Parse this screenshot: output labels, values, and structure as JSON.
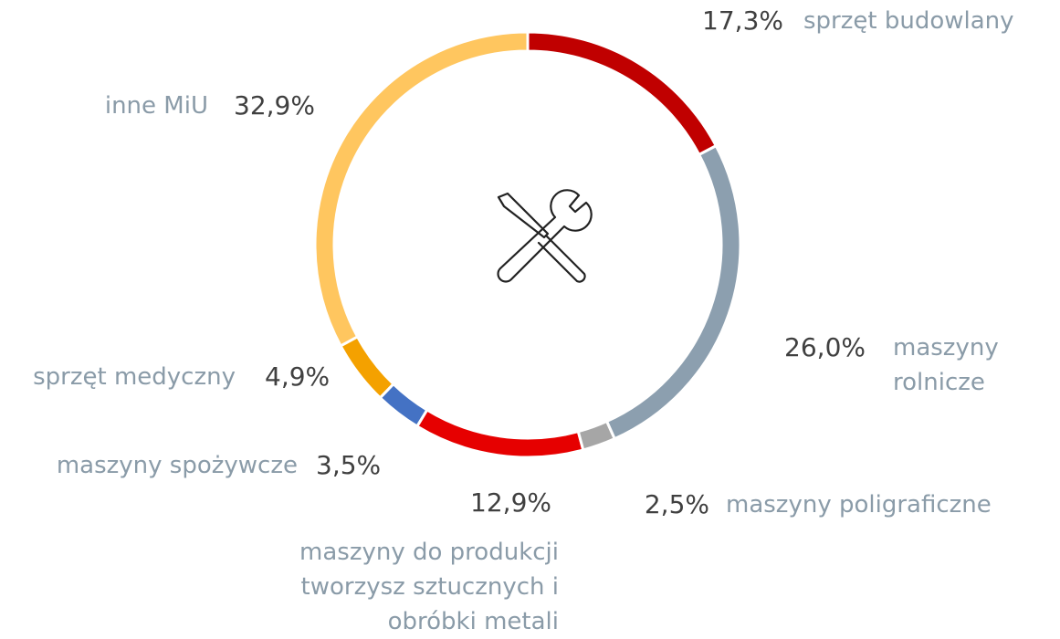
{
  "chart_data": {
    "type": "donut",
    "categories": [
      "sprzęt budowlany",
      "maszyny\nrolnicze",
      "maszyny poligraficzne",
      "maszyny do produkcji\ntworzysz sztucznych i\nobróbki metali",
      "maszyny spożywcze",
      "sprzęt medyczny",
      "inne MiU"
    ],
    "values": [
      17.3,
      26.0,
      2.5,
      12.9,
      3.5,
      4.9,
      32.9
    ],
    "value_labels": [
      "17,3%",
      "26,0%",
      "2,5%",
      "12,9%",
      "3,5%",
      "4,9%",
      "32,9%"
    ],
    "colors": [
      "#c00000",
      "#8c9faf",
      "#a6a6a6",
      "#e60000",
      "#4472c4",
      "#f4a100",
      "#ffc65f"
    ]
  }
}
